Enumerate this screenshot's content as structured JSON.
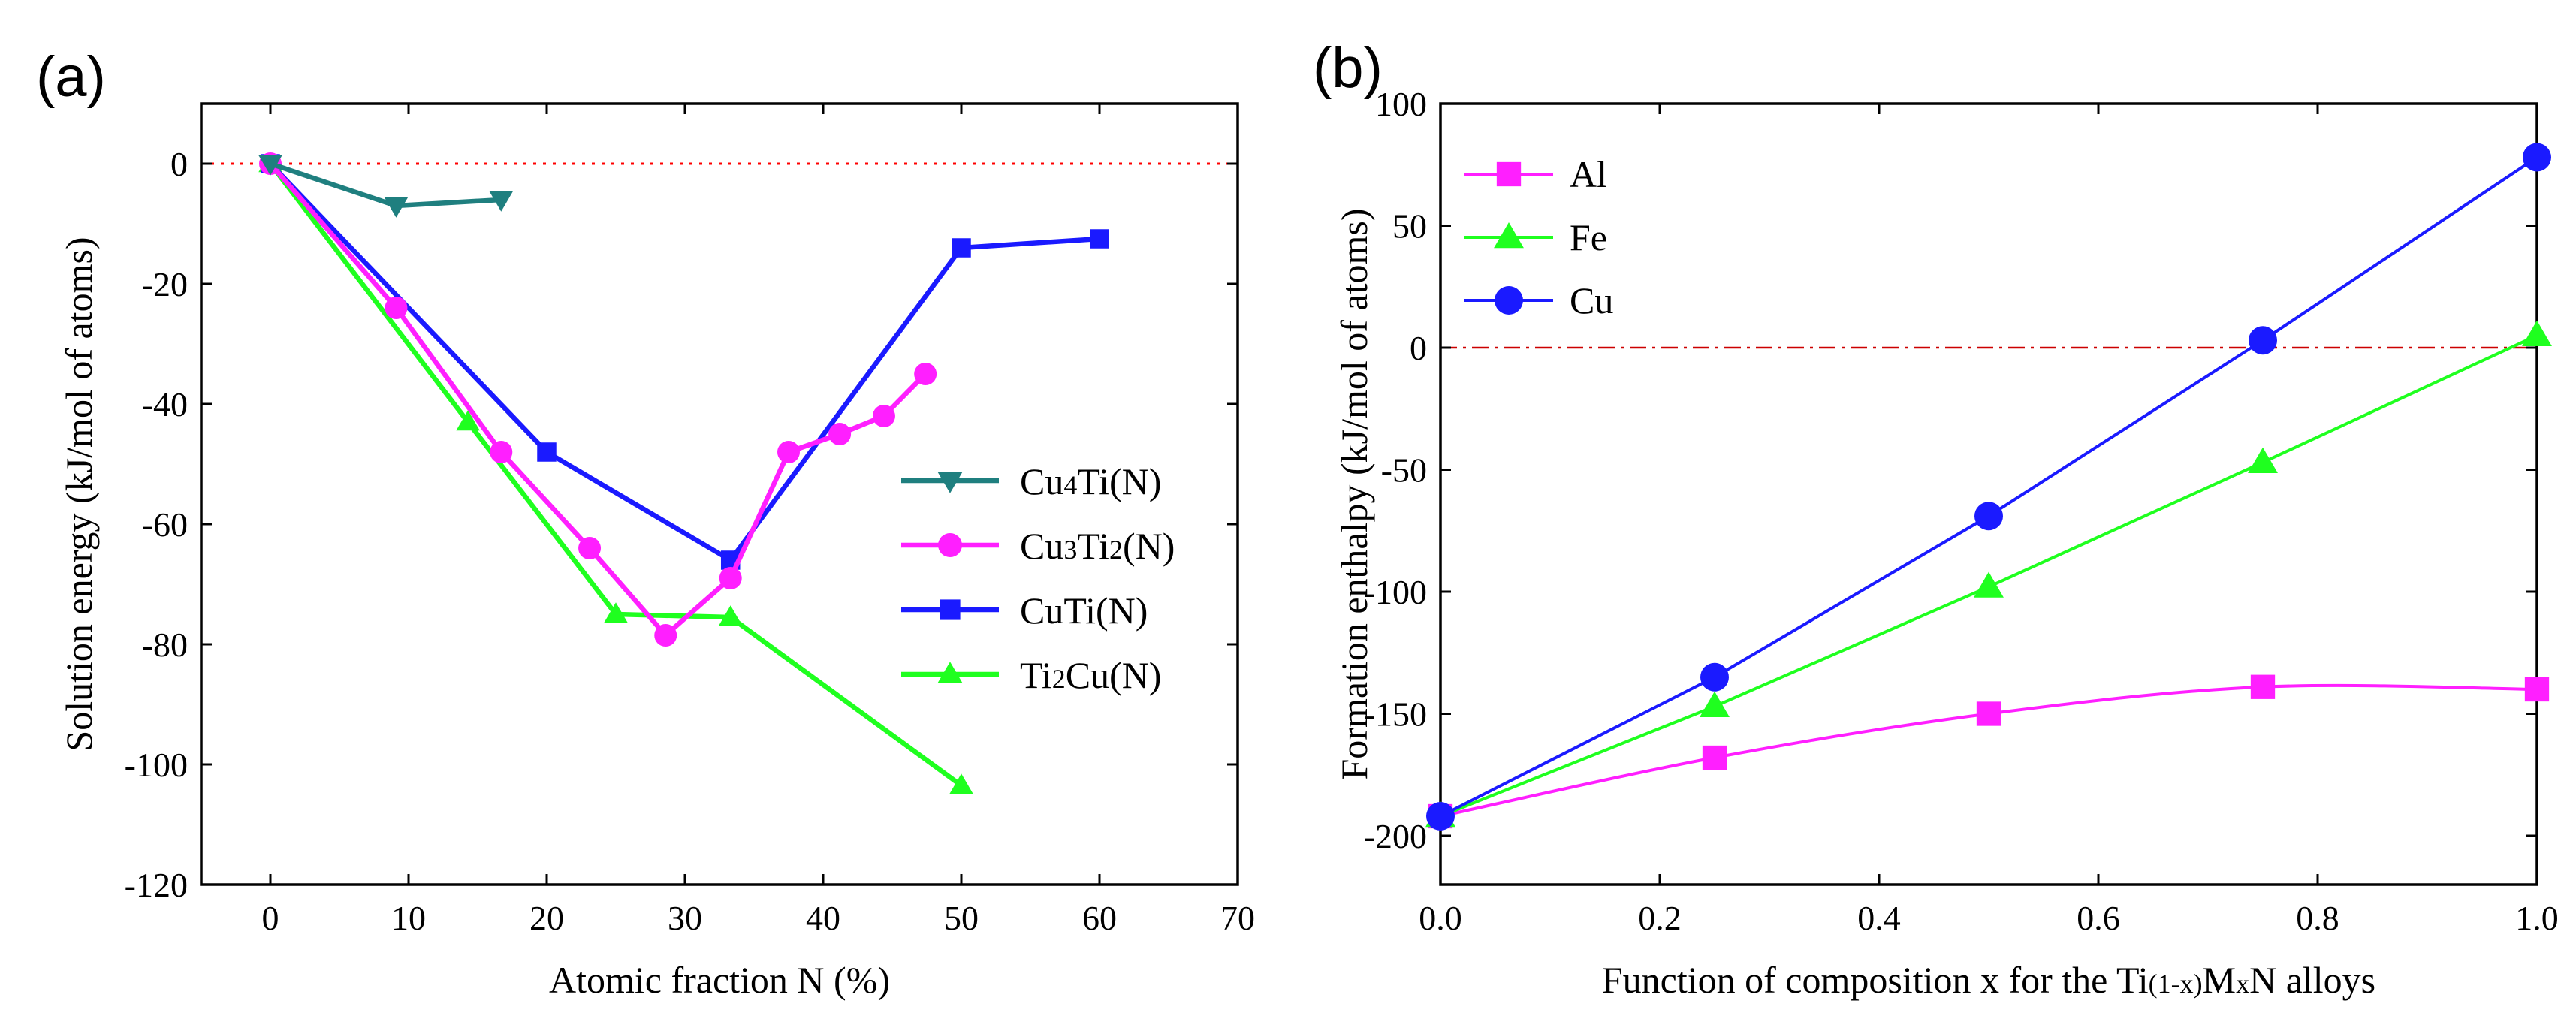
{
  "figure": {
    "panels": [
      "(a)",
      "(b)"
    ]
  },
  "chart_data": [
    {
      "panel": "(a)",
      "type": "line",
      "title": "",
      "xlabel": "Atomic fraction N (%)",
      "ylabel": "Solution energy (kJ/mol of atoms)",
      "xlim": [
        -5,
        70
      ],
      "ylim": [
        -120,
        10
      ],
      "xticks": [
        0,
        10,
        20,
        30,
        40,
        50,
        60,
        70
      ],
      "yticks": [
        0,
        -20,
        -40,
        -60,
        -80,
        -100,
        -120
      ],
      "reference_line": {
        "y": 0,
        "style": "dotted",
        "color": "#ff0000"
      },
      "legend_position": "center-right",
      "series": [
        {
          "key": "cu4ti",
          "name": "Cu4Ti(N)",
          "name_parts": [
            "Cu",
            "4",
            "Ti(N)"
          ],
          "color": "#1f7f7f",
          "marker": "triangle-down",
          "x": [
            0,
            9.1,
            16.7
          ],
          "y": [
            0,
            -7,
            -6
          ]
        },
        {
          "key": "cu3ti2",
          "name": "Cu3Ti2(N)",
          "name_parts": [
            "Cu",
            "3",
            "Ti",
            "2",
            "(N)"
          ],
          "color": "#ff1fff",
          "marker": "circle",
          "x": [
            0,
            9.1,
            16.7,
            23.1,
            28.6,
            33.3,
            37.5,
            41.2,
            44.4,
            47.4
          ],
          "y": [
            0,
            -24,
            -48,
            -64,
            -78.5,
            -69,
            -48,
            -45,
            -42,
            -35
          ]
        },
        {
          "key": "cuti",
          "name": "CuTi(N)",
          "name_parts": [
            "CuTi(N)"
          ],
          "color": "#1a1aff",
          "marker": "square",
          "x": [
            0,
            20,
            33.3,
            50,
            60
          ],
          "y": [
            0,
            -48,
            -66,
            -14,
            -12.5
          ]
        },
        {
          "key": "ti2cu",
          "name": "Ti2Cu(N)",
          "name_parts": [
            "Ti",
            "2",
            "Cu(N)"
          ],
          "color": "#1fff1f",
          "marker": "triangle-up",
          "x": [
            0,
            14.3,
            25,
            33.3,
            50
          ],
          "y": [
            0,
            -43,
            -75,
            -75.5,
            -103.5
          ]
        }
      ]
    },
    {
      "panel": "(b)",
      "type": "line",
      "title": "",
      "xlabel": "Function of composition x for the Ti(1-x)MxN alloys",
      "xlabel_parts": [
        "Function of composition x for the Ti",
        "(1-x)",
        "M",
        "x",
        "N alloys"
      ],
      "ylabel": "Formation enthalpy (kJ/mol of atoms)",
      "xlim": [
        0,
        1
      ],
      "ylim": [
        -220,
        100
      ],
      "xticks": [
        "0.0",
        "0.2",
        "0.4",
        "0.6",
        "0.8",
        "1.0"
      ],
      "yticks": [
        100,
        50,
        0,
        -50,
        -100,
        -150,
        -200
      ],
      "reference_line": {
        "y": 0,
        "style": "dash-dot",
        "color": "#cc0000"
      },
      "legend_position": "top-left",
      "series": [
        {
          "key": "al",
          "name": "Al",
          "color": "#ff1fff",
          "marker": "square",
          "smooth": true,
          "x": [
            0,
            0.25,
            0.5,
            0.75,
            1.0
          ],
          "y": [
            -192,
            -168,
            -150,
            -139,
            -140
          ]
        },
        {
          "key": "fe",
          "name": "Fe",
          "color": "#1fff1f",
          "marker": "triangle-up",
          "x": [
            0,
            0.25,
            0.5,
            0.75,
            1.0
          ],
          "y": [
            -192,
            -147,
            -98,
            -47,
            5
          ]
        },
        {
          "key": "cu",
          "name": "Cu",
          "color": "#1a1aff",
          "marker": "circle",
          "x": [
            0,
            0.25,
            0.5,
            0.75,
            1.0
          ],
          "y": [
            -192,
            -135,
            -69,
            3,
            78
          ]
        }
      ]
    }
  ]
}
